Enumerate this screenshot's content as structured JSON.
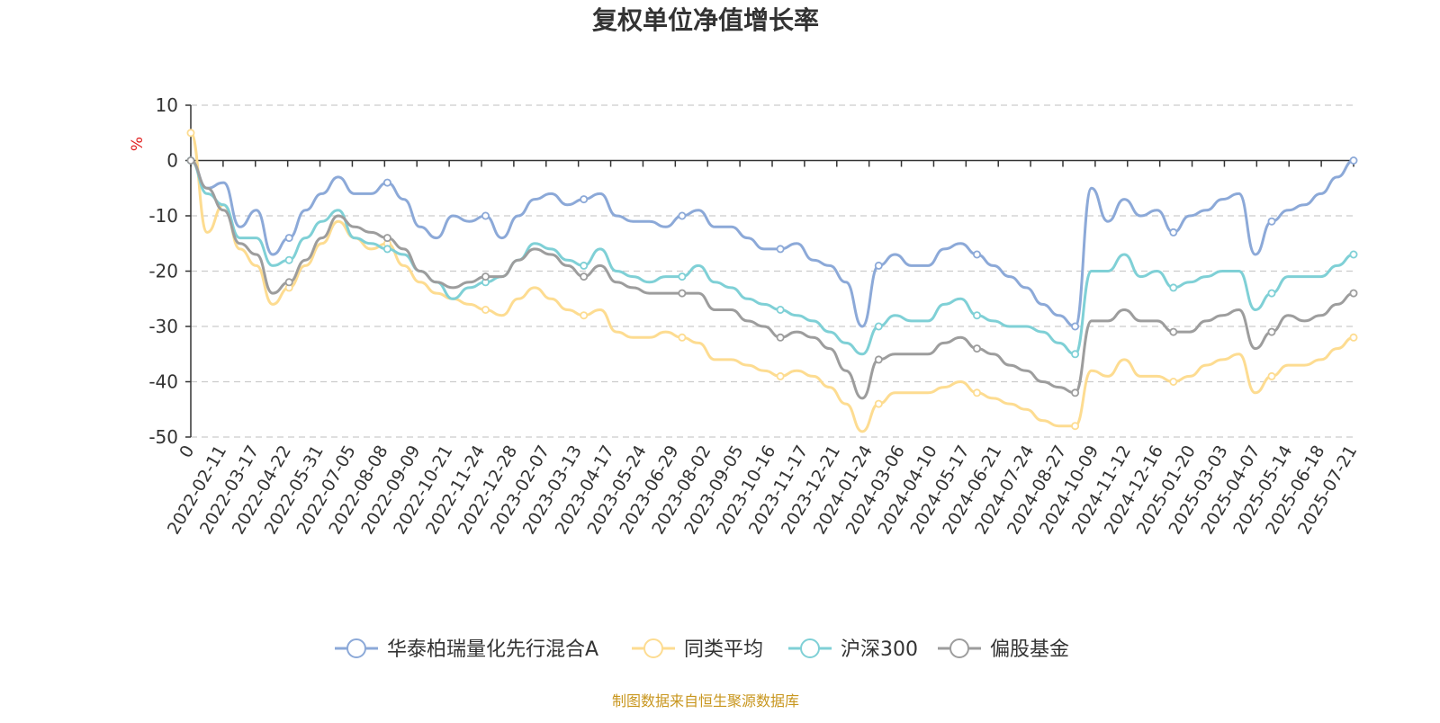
{
  "chart_data": {
    "type": "line",
    "title": "复权单位净值增长率",
    "unit_label": "%",
    "ylim": [
      -50,
      10
    ],
    "yticks": [
      "10",
      "0",
      "-10",
      "-20",
      "-30",
      "-40",
      "-50"
    ],
    "x_tick_labels": [
      "0",
      "2022-02-11",
      "2022-03-17",
      "2022-04-22",
      "2022-05-31",
      "2022-07-05",
      "2022-08-08",
      "2022-09-09",
      "2022-10-21",
      "2022-11-24",
      "2022-12-28",
      "2023-02-07",
      "2023-03-13",
      "2023-04-17",
      "2023-05-24",
      "2023-06-29",
      "2023-08-02",
      "2023-09-05",
      "2023-10-16",
      "2023-11-17",
      "2023-12-21",
      "2024-01-24",
      "2024-03-06",
      "2024-04-10",
      "2024-05-17",
      "2024-06-21",
      "2024-07-24",
      "2024-08-27",
      "2024-10-09",
      "2024-11-12",
      "2024-12-16",
      "2025-01-20",
      "2025-03-03",
      "2025-04-07",
      "2025-05-14",
      "2025-06-18",
      "2025-07-21"
    ],
    "x": [
      "0",
      "2022-02-11",
      "2022-02-28",
      "2022-03-17",
      "2022-04-06",
      "2022-04-22",
      "2022-05-12",
      "2022-05-31",
      "2022-06-17",
      "2022-07-05",
      "2022-07-21",
      "2022-08-08",
      "2022-08-24",
      "2022-09-09",
      "2022-10-06",
      "2022-10-21",
      "2022-11-08",
      "2022-11-24",
      "2022-12-12",
      "2022-12-28",
      "2023-01-17",
      "2023-02-07",
      "2023-02-23",
      "2023-03-13",
      "2023-03-30",
      "2023-04-17",
      "2023-05-08",
      "2023-05-24",
      "2023-06-12",
      "2023-06-29",
      "2023-07-17",
      "2023-08-02",
      "2023-08-18",
      "2023-09-05",
      "2023-09-22",
      "2023-10-16",
      "2023-11-01",
      "2023-11-17",
      "2023-12-05",
      "2023-12-21",
      "2024-01-08",
      "2024-01-24",
      "2024-02-09",
      "2024-03-06",
      "2024-03-22",
      "2024-04-10",
      "2024-04-26",
      "2024-05-17",
      "2024-06-04",
      "2024-06-21",
      "2024-07-08",
      "2024-07-24",
      "2024-08-09",
      "2024-08-27",
      "2024-09-20",
      "2024-10-09",
      "2024-10-25",
      "2024-11-12",
      "2024-11-28",
      "2024-12-16",
      "2025-01-02",
      "2025-01-20",
      "2025-02-13",
      "2025-03-03",
      "2025-03-19",
      "2025-04-07",
      "2025-04-24",
      "2025-05-14",
      "2025-05-30",
      "2025-06-18",
      "2025-07-04",
      "2025-07-21"
    ],
    "series": [
      {
        "name": "华泰柏瑞量化先行混合A",
        "color": "#8ca9d8",
        "values": [
          0,
          -5,
          -4,
          -12,
          -9,
          -17,
          -14,
          -9,
          -6,
          -3,
          -6,
          -6,
          -4,
          -7,
          -12,
          -14,
          -10,
          -11,
          -10,
          -14,
          -10,
          -7,
          -6,
          -8,
          -7,
          -6,
          -10,
          -11,
          -11,
          -12,
          -10,
          -9,
          -12,
          -12,
          -14,
          -16,
          -16,
          -15,
          -18,
          -19,
          -22,
          -30,
          -19,
          -17,
          -19,
          -19,
          -16,
          -15,
          -17,
          -19,
          -21,
          -23,
          -26,
          -28,
          -30,
          -5,
          -11,
          -7,
          -10,
          -9,
          -13,
          -10,
          -9,
          -7,
          -6,
          -17,
          -11,
          -9,
          -8,
          -6,
          -3,
          0
        ]
      },
      {
        "name": "同类平均",
        "color": "#fddc91",
        "values": [
          5,
          -13,
          -8,
          -16,
          -19,
          -26,
          -23,
          -19,
          -15,
          -11,
          -14,
          -16,
          -15,
          -19,
          -22,
          -24,
          -25,
          -26,
          -27,
          -28,
          -25,
          -23,
          -25,
          -27,
          -28,
          -27,
          -31,
          -32,
          -32,
          -31,
          -32,
          -33,
          -36,
          -36,
          -37,
          -38,
          -39,
          -38,
          -39,
          -41,
          -44,
          -49,
          -44,
          -42,
          -42,
          -42,
          -41,
          -40,
          -42,
          -43,
          -44,
          -45,
          -47,
          -48,
          -48,
          -38,
          -39,
          -36,
          -39,
          -39,
          -40,
          -39,
          -37,
          -36,
          -35,
          -42,
          -39,
          -37,
          -37,
          -36,
          -34,
          -32
        ]
      },
      {
        "name": "沪深300",
        "color": "#7fd0d6",
        "values": [
          0,
          -6,
          -8,
          -14,
          -14,
          -19,
          -18,
          -14,
          -11,
          -9,
          -14,
          -15,
          -16,
          -17,
          -20,
          -22,
          -25,
          -23,
          -22,
          -21,
          -18,
          -15,
          -16,
          -18,
          -19,
          -16,
          -20,
          -21,
          -22,
          -21,
          -21,
          -19,
          -22,
          -23,
          -25,
          -26,
          -27,
          -28,
          -29,
          -31,
          -33,
          -35,
          -30,
          -28,
          -29,
          -29,
          -26,
          -25,
          -28,
          -29,
          -30,
          -30,
          -31,
          -33,
          -35,
          -20,
          -20,
          -17,
          -21,
          -20,
          -23,
          -22,
          -21,
          -20,
          -20,
          -27,
          -24,
          -21,
          -21,
          -21,
          -19,
          -17
        ]
      },
      {
        "name": "偏股基金",
        "color": "#9d9d9d",
        "values": [
          0,
          -5,
          -9,
          -15,
          -17,
          -24,
          -22,
          -18,
          -14,
          -10,
          -12,
          -13,
          -14,
          -16,
          -20,
          -22,
          -23,
          -22,
          -21,
          -21,
          -18,
          -16,
          -17,
          -19,
          -21,
          -19,
          -22,
          -23,
          -24,
          -24,
          -24,
          -24,
          -27,
          -27,
          -29,
          -30,
          -32,
          -31,
          -32,
          -34,
          -38,
          -43,
          -36,
          -35,
          -35,
          -35,
          -33,
          -32,
          -34,
          -35,
          -37,
          -38,
          -40,
          -41,
          -42,
          -29,
          -29,
          -27,
          -29,
          -29,
          -31,
          -31,
          -29,
          -28,
          -27,
          -34,
          -31,
          -28,
          -29,
          -28,
          -26,
          -24
        ]
      }
    ],
    "legend_position": "bottom",
    "grid": "dashed-horizontal",
    "source": "制图数据来自恒生聚源数据库"
  }
}
